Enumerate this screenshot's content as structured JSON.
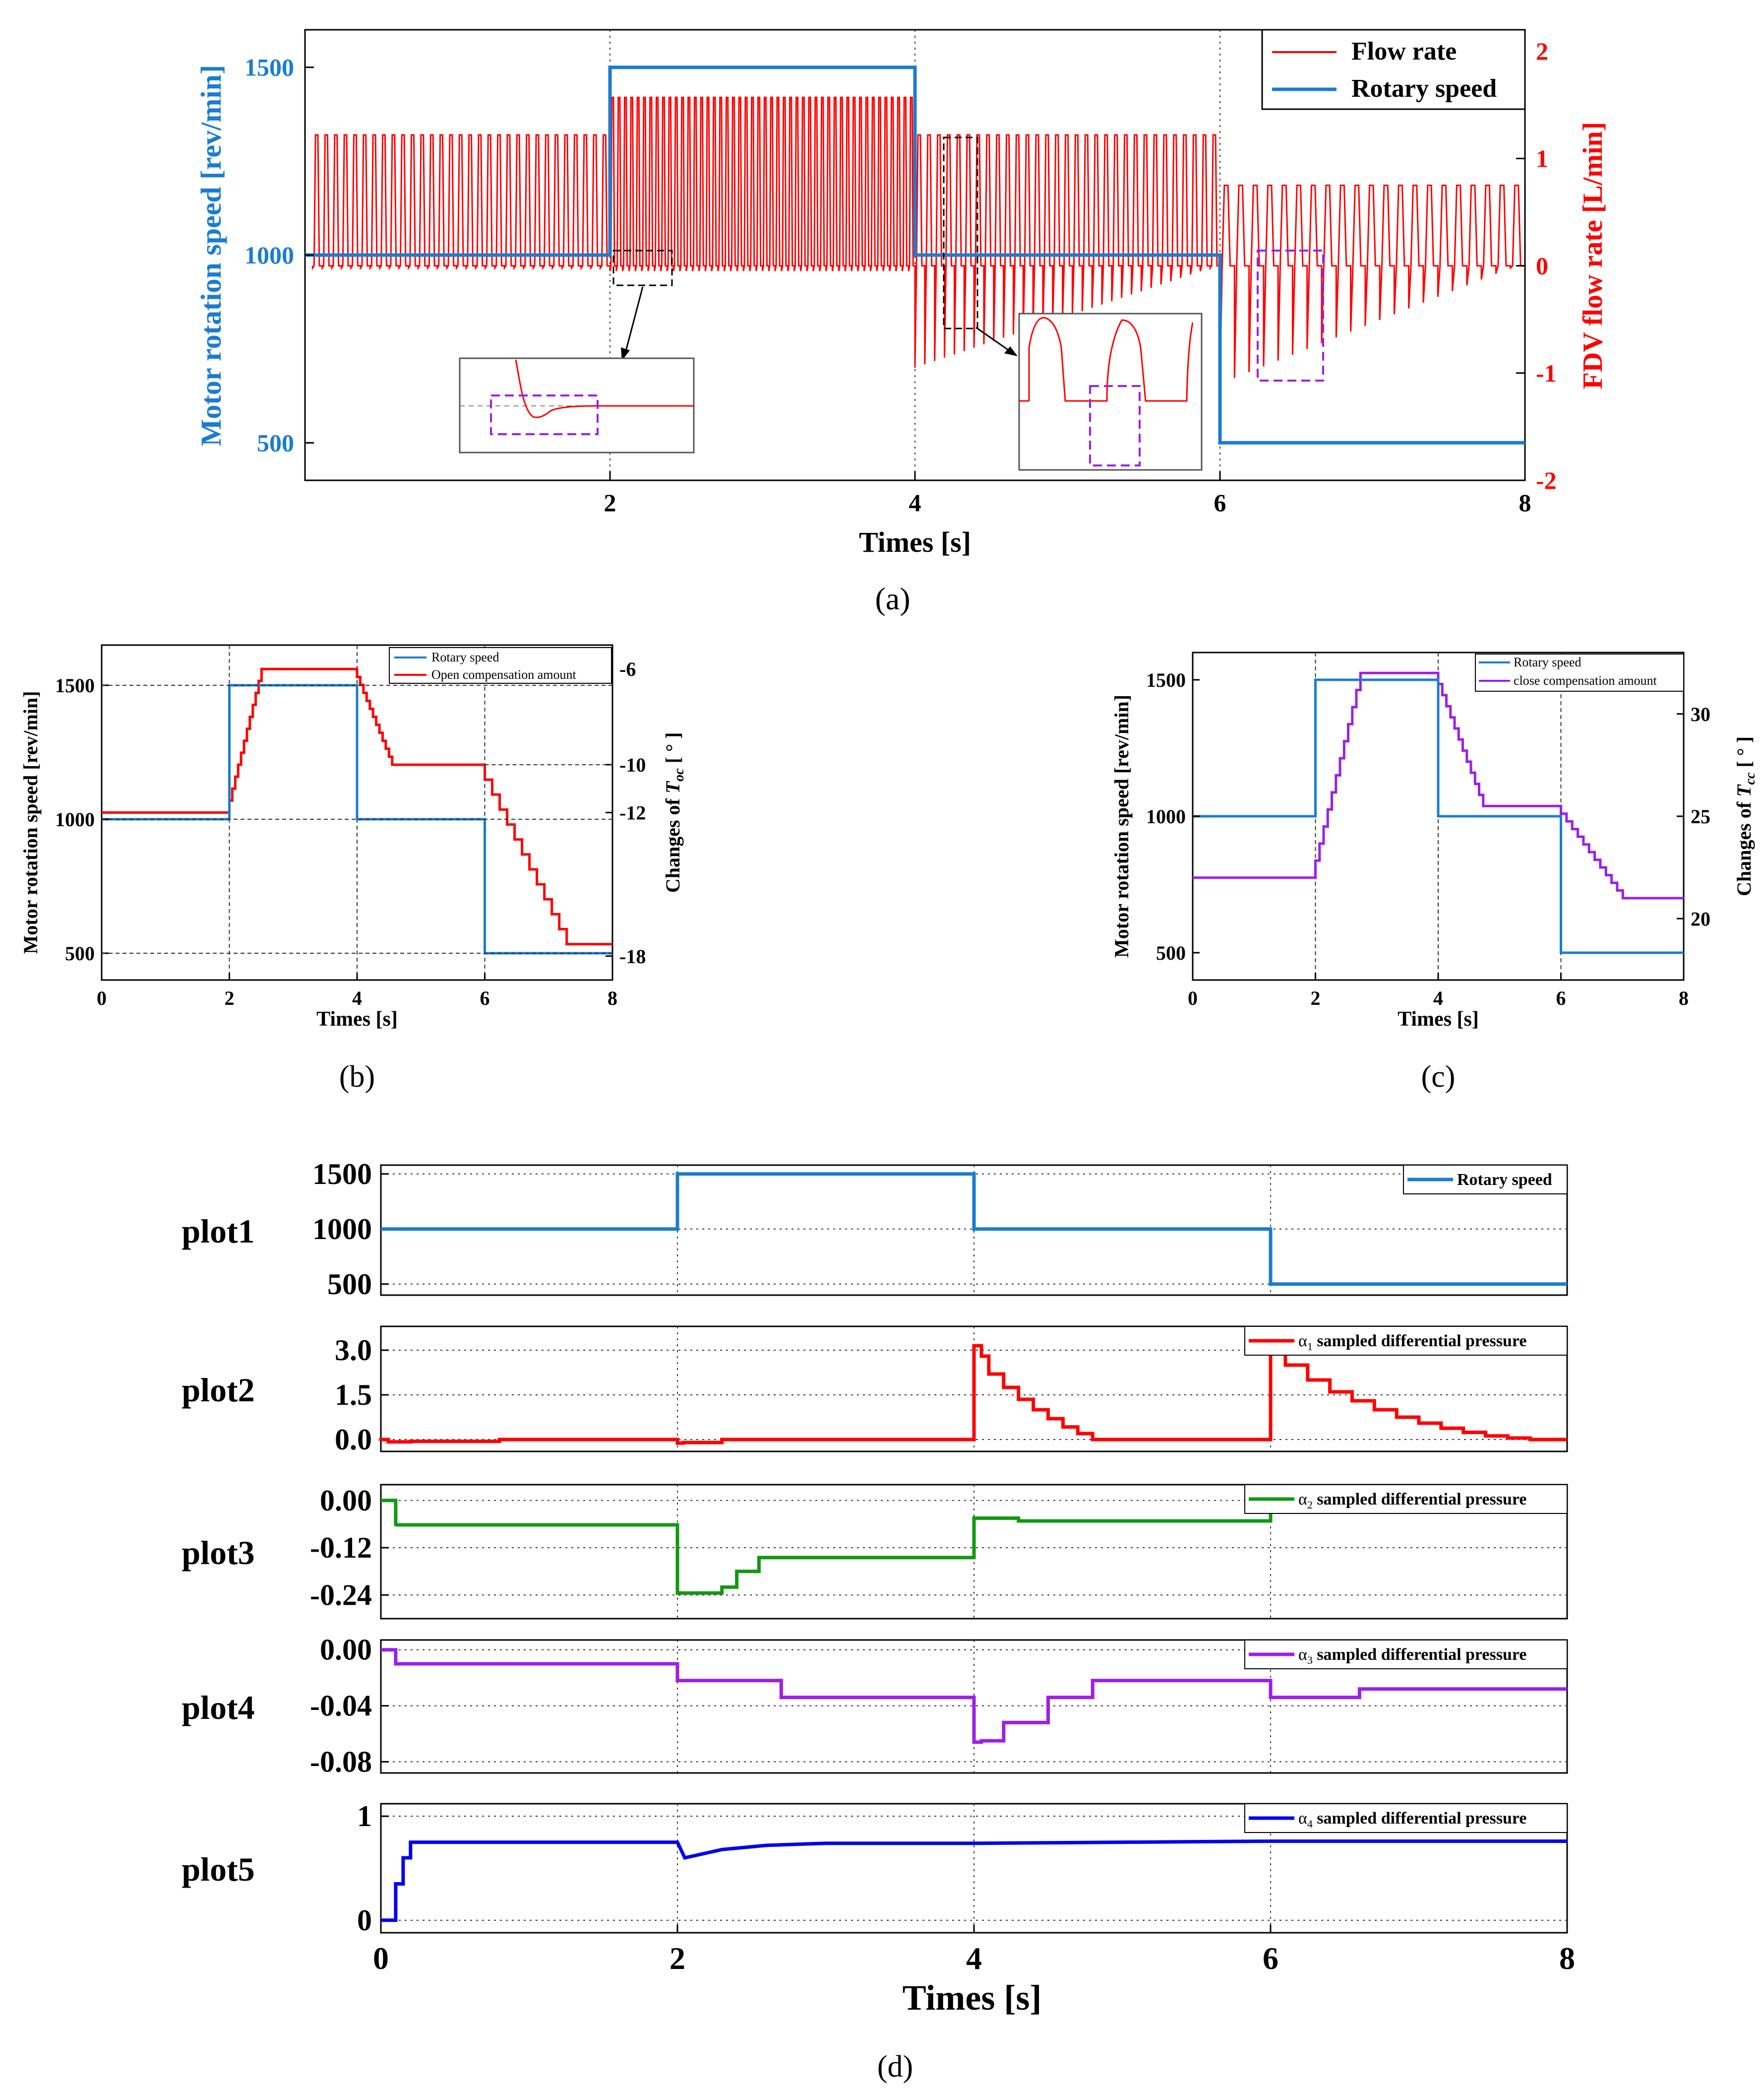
{
  "colors": {
    "speed": "#1a7dd1",
    "flow": "#ff0000",
    "open": "#ff0000",
    "close": "#9b1fe8",
    "a1": "#ff0000",
    "a2": "#119911",
    "a3": "#9b1fe8",
    "a4": "#0000ee",
    "inset_box": "#9b1fe8",
    "axis": "#000000",
    "ref_line": "#555555"
  },
  "panels": {
    "a": {
      "caption": "(a)",
      "xlabel": "Times [s]",
      "ylabel_left": "Motor rotation speed [rev/min]",
      "ylabel_right": "FDV flow rate [L/min]",
      "legend": [
        "Flow rate",
        "Rotary speed"
      ],
      "xticks": [
        "2",
        "4",
        "6",
        "8"
      ],
      "yticks_left": [
        "500",
        "1000",
        "1500"
      ],
      "yticks_right": [
        "-2",
        "-1",
        "0",
        "1",
        "2"
      ]
    },
    "b": {
      "caption": "(b)",
      "xlabel": "Times [s]",
      "ylabel_left": "Motor rotation speed [rev/min]",
      "ylabel_right_prefix": "Changes of ",
      "ylabel_right_var": "T",
      "ylabel_right_sub": "oc",
      "ylabel_right_suffix": " [ ° ]",
      "legend": [
        "Rotary speed",
        "Open compensation amount"
      ],
      "xticks": [
        "0",
        "2",
        "4",
        "6",
        "8"
      ],
      "yticks_left": [
        "500",
        "1000",
        "1500"
      ],
      "yticks_right": [
        "-6",
        "-10",
        "-12",
        "-18"
      ]
    },
    "c": {
      "caption": "(c)",
      "xlabel": "Times [s]",
      "ylabel_left": "Motor rotation speed [rev/min]",
      "ylabel_right_prefix": "Changes of  ",
      "ylabel_right_var": "T",
      "ylabel_right_sub": "cc",
      "ylabel_right_suffix": " [ ° ]",
      "legend": [
        "Rotary speed",
        "close compensation amount"
      ],
      "xticks": [
        "0",
        "2",
        "4",
        "6",
        "8"
      ],
      "yticks_left": [
        "500",
        "1000",
        "1500"
      ],
      "yticks_right": [
        "20",
        "25",
        "30"
      ]
    },
    "d": {
      "caption": "(d)",
      "xlabel": "Times [s]",
      "xticks": [
        "0",
        "2",
        "4",
        "6",
        "8"
      ],
      "plots": [
        {
          "label": "plot1",
          "legend": "Rotary speed",
          "yticks": [
            "1500",
            "1000",
            "500"
          ]
        },
        {
          "label": "plot2",
          "legend_alpha": "α",
          "legend_sub": "1",
          "legend_rest": " sampled differential pressure",
          "yticks": [
            "3.0",
            "1.5",
            "0.0"
          ]
        },
        {
          "label": "plot3",
          "legend_alpha": "α",
          "legend_sub": "2",
          "legend_rest": " sampled differential pressure",
          "yticks": [
            "0.00",
            "-0.12",
            "-0.24"
          ]
        },
        {
          "label": "plot4",
          "legend_alpha": "α",
          "legend_sub": "3",
          "legend_rest": " sampled differential pressure",
          "yticks": [
            "0.00",
            "-0.04",
            "-0.08"
          ]
        },
        {
          "label": "plot5",
          "legend_alpha": "α",
          "legend_sub": "4",
          "legend_rest": " sampled differential pressure",
          "yticks": [
            "1",
            "0"
          ]
        }
      ]
    }
  },
  "chart_data": [
    {
      "panel": "a",
      "type": "line",
      "xlim": [
        0,
        8
      ],
      "ylim_left": [
        400,
        1600
      ],
      "ylim_right": [
        -2,
        2.2
      ],
      "series": [
        {
          "name": "Rotary speed",
          "axis": "left",
          "x": [
            0,
            2,
            2,
            4,
            4,
            6,
            6,
            8
          ],
          "y": [
            1000,
            1000,
            1500,
            1500,
            1000,
            1000,
            500,
            500
          ]
        },
        {
          "name": "Flow rate",
          "axis": "right",
          "pulse_segments": [
            {
              "t0": 0.05,
              "t1": 2.0,
              "count": 31,
              "peak": 1.22,
              "trough": -0.02
            },
            {
              "t0": 2.0,
              "t1": 4.0,
              "count": 48,
              "peak": 1.57,
              "trough": -0.05
            },
            {
              "t0": 4.0,
              "t1": 6.0,
              "count": 31,
              "peak": 1.22,
              "trough_start": -0.95,
              "trough_end": -0.02
            },
            {
              "t0": 6.0,
              "t1": 8.0,
              "count": 21,
              "peak": 0.75,
              "trough_start": -1.1,
              "trough_end": -0.02
            }
          ]
        }
      ]
    },
    {
      "panel": "b",
      "type": "line",
      "xlim": [
        0,
        8
      ],
      "ylim_left": [
        400,
        1650
      ],
      "ylim_right": [
        -19,
        -5
      ],
      "series": [
        {
          "name": "Rotary speed",
          "axis": "left",
          "x": [
            0,
            2,
            2,
            4,
            4,
            6,
            6,
            8
          ],
          "y": [
            1000,
            1000,
            1500,
            1500,
            1000,
            1000,
            500,
            500
          ]
        },
        {
          "name": "Open compensation amount",
          "axis": "right",
          "x": [
            0,
            2.0,
            2.55,
            4.0,
            4.6,
            6.0,
            7.4,
            8.0
          ],
          "y": [
            -12,
            -12,
            -6,
            -6,
            -10,
            -10,
            -17.5,
            -17.5
          ]
        }
      ]
    },
    {
      "panel": "c",
      "type": "line",
      "xlim": [
        0,
        8
      ],
      "ylim_left": [
        400,
        1600
      ],
      "ylim_right": [
        17,
        33
      ],
      "series": [
        {
          "name": "Rotary speed",
          "axis": "left",
          "x": [
            0,
            2,
            2,
            4,
            4,
            6,
            6,
            8
          ],
          "y": [
            1000,
            1000,
            1500,
            1500,
            1000,
            1000,
            500,
            500
          ]
        },
        {
          "name": "close compensation amount",
          "axis": "right",
          "x": [
            0,
            2.0,
            2.8,
            4.0,
            4.8,
            6.0,
            7.1,
            8.0
          ],
          "y": [
            22,
            22,
            32,
            32,
            25.5,
            25.5,
            21,
            21
          ]
        }
      ]
    },
    {
      "panel": "d",
      "type": "line",
      "xlim": [
        0,
        8
      ],
      "subplots": [
        {
          "label": "plot1",
          "ylim": [
            400,
            1580
          ],
          "series": [
            {
              "name": "Rotary speed",
              "x": [
                0,
                2,
                2,
                4,
                4,
                6,
                6,
                8
              ],
              "y": [
                1000,
                1000,
                1500,
                1500,
                1000,
                1000,
                500,
                500
              ]
            }
          ]
        },
        {
          "label": "plot2",
          "ylim": [
            -0.4,
            3.8
          ],
          "series": [
            {
              "name": "α1 sampled differential pressure",
              "x": [
                0,
                0.05,
                0.2,
                0.8,
                1.0,
                2.0,
                2.04,
                2.3,
                2.55,
                4.0,
                4.05,
                4.1,
                4.2,
                4.3,
                4.4,
                4.5,
                4.6,
                4.7,
                4.8,
                4.85,
                6.0,
                6.05,
                6.1,
                6.25,
                6.4,
                6.55,
                6.7,
                6.85,
                7.0,
                7.15,
                7.3,
                7.45,
                7.6,
                7.75,
                7.9,
                8.0
              ],
              "y": [
                0.05,
                0.0,
                -0.08,
                -0.06,
                0.0,
                0.0,
                -0.12,
                -0.1,
                0.0,
                0.0,
                3.15,
                2.8,
                2.2,
                1.75,
                1.35,
                1.0,
                0.7,
                0.42,
                0.2,
                0.0,
                0.0,
                3.15,
                3.0,
                2.5,
                2.0,
                1.6,
                1.3,
                1.0,
                0.75,
                0.55,
                0.38,
                0.24,
                0.12,
                0.05,
                0.0,
                0.0
              ]
            }
          ]
        },
        {
          "label": "plot3",
          "ylim": [
            -0.3,
            0.04
          ],
          "series": [
            {
              "name": "α2 sampled differential pressure",
              "x": [
                0,
                0.1,
                0.1,
                1.0,
                2.0,
                2.05,
                2.3,
                2.4,
                2.55,
                2.7,
                4.0,
                4.05,
                4.3,
                4.6,
                6.0,
                6.05,
                8.0
              ],
              "y": [
                0.0,
                0.0,
                -0.065,
                -0.062,
                -0.062,
                -0.235,
                -0.235,
                -0.22,
                -0.18,
                -0.145,
                -0.145,
                -0.045,
                -0.045,
                -0.052,
                -0.052,
                -0.015,
                -0.02
              ]
            }
          ]
        },
        {
          "label": "plot4",
          "ylim": [
            -0.088,
            0.007
          ],
          "series": [
            {
              "name": "α3 sampled differential pressure",
              "x": [
                0,
                0.1,
                0.1,
                2.0,
                2.05,
                2.7,
                2.9,
                4.0,
                4.05,
                4.2,
                4.5,
                4.8,
                4.95,
                6.0,
                6.05,
                6.6,
                7.2,
                8.0
              ],
              "y": [
                0.0,
                0.0,
                -0.01,
                -0.01,
                -0.022,
                -0.022,
                -0.034,
                -0.034,
                -0.066,
                -0.065,
                -0.052,
                -0.034,
                -0.022,
                -0.022,
                -0.034,
                -0.034,
                -0.028,
                -0.028
              ]
            }
          ]
        },
        {
          "label": "plot5",
          "ylim": [
            -0.12,
            1.12
          ],
          "series": [
            {
              "name": "α4 sampled differential pressure",
              "x": [
                0,
                0.1,
                0.1,
                0.15,
                0.15,
                0.2,
                0.2,
                0.25,
                0.25,
                2.0,
                2.05,
                2.3,
                2.6,
                3.0,
                4.0,
                6.0,
                8.0
              ],
              "y": [
                0.0,
                0.0,
                0.35,
                0.35,
                0.6,
                0.6,
                0.75,
                0.75,
                0.75,
                0.75,
                0.6,
                0.68,
                0.72,
                0.74,
                0.74,
                0.76,
                0.76
              ]
            }
          ]
        }
      ]
    }
  ]
}
